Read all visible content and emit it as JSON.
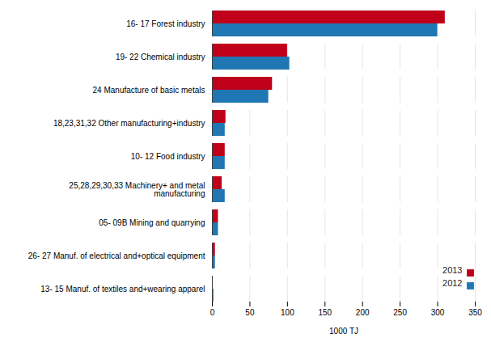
{
  "chart_data": {
    "type": "bar",
    "orientation": "horizontal",
    "categories": [
      "16- 17 Forest industry",
      "19- 22 Chemical industry",
      "24 Manufacture of basic metals",
      "18,23,31,32 Other manufacturing+industry",
      "10- 12 Food industry",
      "25,28,29,30,33 Machinery+ and metal\nmanufacturing",
      "05- 09B Mining and quarrying",
      "26- 27 Manuf. of electrical and+optical equipment",
      "13- 15 Manuf. of textiles and+wearing apparel"
    ],
    "series": [
      {
        "name": "2013",
        "color": "#c0001a",
        "values": [
          310,
          100,
          80,
          18,
          17,
          13,
          8,
          4,
          1
        ]
      },
      {
        "name": "2012",
        "color": "#1f77b4",
        "values": [
          300,
          103,
          75,
          17,
          17,
          17,
          8,
          4,
          2
        ]
      }
    ],
    "xlabel": "1000 TJ",
    "xlim": [
      0,
      350
    ],
    "xticks": [
      0,
      50,
      100,
      150,
      200,
      250,
      300,
      350
    ],
    "grid": true,
    "legend": "lower right"
  }
}
